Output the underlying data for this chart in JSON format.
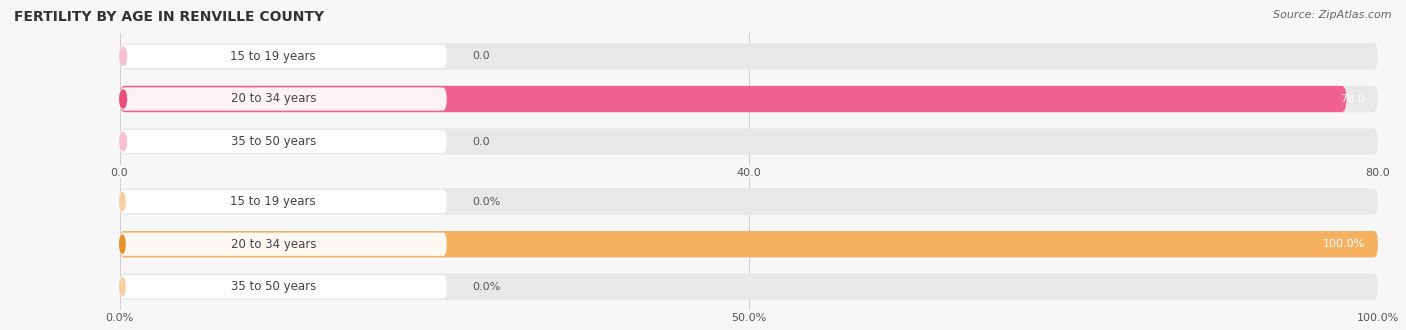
{
  "title": "Female Fertility by Age in Renville County",
  "title_display": "FERTILITY BY AGE IN RENVILLE COUNTY",
  "source": "Source: ZipAtlas.com",
  "top_chart": {
    "categories": [
      "15 to 19 years",
      "20 to 34 years",
      "35 to 50 years"
    ],
    "values": [
      0.0,
      78.0,
      0.0
    ],
    "xlim_max": 80.0,
    "xticks": [
      0.0,
      40.0,
      80.0
    ],
    "xtick_labels": [
      "0.0",
      "40.0",
      "80.0"
    ],
    "bar_color": "#F06090",
    "bar_bg_color": "#E8E8E8",
    "label_pill_color": "#F8C0D0",
    "label_pill_color_active": "#E8507A"
  },
  "bottom_chart": {
    "categories": [
      "15 to 19 years",
      "20 to 34 years",
      "35 to 50 years"
    ],
    "values": [
      0.0,
      100.0,
      0.0
    ],
    "xlim_max": 100.0,
    "xticks": [
      0.0,
      50.0,
      100.0
    ],
    "xtick_labels": [
      "0.0%",
      "50.0%",
      "100.0%"
    ],
    "bar_color": "#F5B060",
    "bar_bg_color": "#E8E8E8",
    "label_pill_color": "#F5D0A0",
    "label_pill_color_active": "#E89030"
  },
  "fig_bg_color": "#F7F7F7",
  "bar_height": 0.62,
  "title_fontsize": 10,
  "source_fontsize": 8,
  "label_fontsize": 8,
  "tick_fontsize": 8,
  "category_fontsize": 8.5
}
